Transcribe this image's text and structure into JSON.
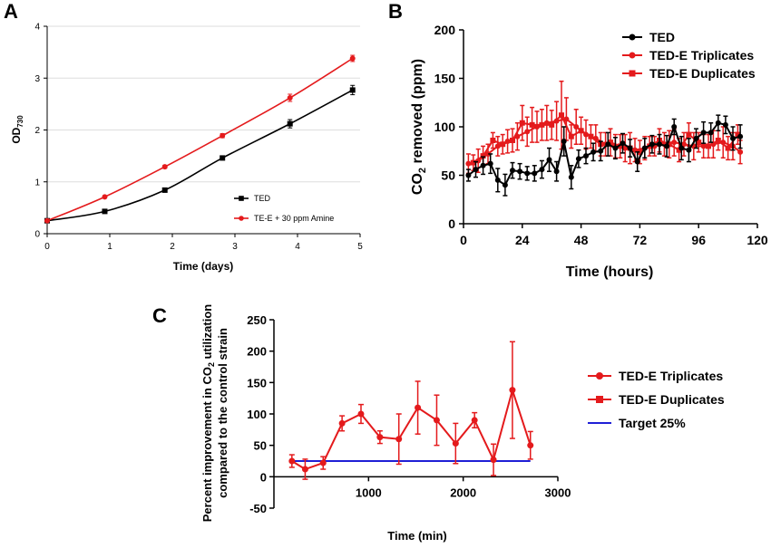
{
  "panels": {
    "a": "A",
    "b": "B",
    "c": "C"
  },
  "colors": {
    "black": "#000000",
    "red": "#e41a1c",
    "blue": "#1f1fd6",
    "grid": "#dddddd"
  },
  "chart_data": [
    {
      "id": "A",
      "type": "line",
      "xlabel": "Time (days)",
      "ylabel_main": "OD",
      "ylabel_sub": "730",
      "xlim": [
        0,
        5
      ],
      "ylim": [
        0,
        4
      ],
      "xticks": [
        0,
        1,
        2,
        3,
        4,
        5
      ],
      "yticks": [
        0,
        1,
        2,
        3,
        4
      ],
      "grid": "horizontal",
      "legend_position": "bottom-right",
      "series": [
        {
          "name": "TED",
          "color": "#000000",
          "marker": "square",
          "x": [
            0,
            0.92,
            1.88,
            2.8,
            3.88,
            4.88
          ],
          "y": [
            0.25,
            0.43,
            0.84,
            1.46,
            2.12,
            2.77
          ],
          "err": [
            0.01,
            0.02,
            0.03,
            0.03,
            0.08,
            0.09
          ]
        },
        {
          "name": "TE-E + 30 ppm Amine",
          "color": "#e41a1c",
          "marker": "circle",
          "x": [
            0,
            0.92,
            1.88,
            2.8,
            3.88,
            4.88
          ],
          "y": [
            0.25,
            0.71,
            1.29,
            1.89,
            2.62,
            3.38
          ],
          "err": [
            0.01,
            0.02,
            0.03,
            0.04,
            0.07,
            0.06
          ]
        }
      ]
    },
    {
      "id": "B",
      "type": "line",
      "xlabel": "Time (hours)",
      "ylabel_pre": "CO",
      "ylabel_sub": "2",
      "ylabel_post": " removed (ppm)",
      "xlim": [
        0,
        120
      ],
      "ylim": [
        0,
        200
      ],
      "xticks": [
        0,
        24,
        48,
        72,
        96,
        120
      ],
      "yticks": [
        0,
        50,
        100,
        150,
        200
      ],
      "grid": "off",
      "legend_position": "top-right",
      "series": [
        {
          "name": "TED",
          "color": "#000000",
          "marker": "circle",
          "x": [
            2,
            5,
            8,
            11,
            14,
            17,
            20,
            23,
            26,
            29,
            32,
            35,
            38,
            41,
            44,
            47,
            50,
            53,
            56,
            59,
            62,
            65,
            68,
            71,
            74,
            77,
            80,
            83,
            86,
            89,
            92,
            95,
            98,
            101,
            104,
            107,
            110,
            113
          ],
          "y": [
            50,
            56,
            60,
            62,
            45,
            40,
            55,
            54,
            52,
            52,
            56,
            66,
            54,
            85,
            48,
            67,
            70,
            74,
            75,
            82,
            78,
            83,
            78,
            64,
            78,
            82,
            82,
            80,
            100,
            78,
            76,
            88,
            94,
            94,
            104,
            102,
            88,
            90
          ],
          "err": [
            6,
            8,
            9,
            10,
            12,
            11,
            8,
            8,
            7,
            8,
            9,
            12,
            10,
            15,
            12,
            9,
            8,
            9,
            10,
            12,
            11,
            10,
            9,
            10,
            10,
            9,
            10,
            11,
            8,
            12,
            12,
            10,
            11,
            10,
            8,
            9,
            12,
            12
          ]
        },
        {
          "name": "TED-E Triplicates",
          "color": "#e41a1c",
          "marker": "circle",
          "x": [
            2,
            6,
            10,
            14,
            18,
            22,
            26,
            30,
            34,
            38,
            42,
            46,
            50,
            54,
            58,
            62,
            66,
            70,
            74,
            78,
            82,
            86,
            90,
            94,
            98,
            102,
            106,
            110,
            113
          ],
          "y": [
            62,
            65,
            72,
            80,
            85,
            90,
            95,
            100,
            104,
            106,
            108,
            100,
            92,
            88,
            82,
            80,
            78,
            76,
            78,
            80,
            82,
            84,
            82,
            80,
            80,
            82,
            84,
            80,
            74
          ],
          "err": [
            10,
            12,
            10,
            10,
            12,
            14,
            15,
            16,
            18,
            20,
            22,
            18,
            15,
            14,
            12,
            12,
            14,
            12,
            12,
            10,
            12,
            14,
            12,
            14,
            12,
            14,
            16,
            14,
            12
          ]
        },
        {
          "name": "TED-E Duplicates",
          "color": "#e41a1c",
          "marker": "square",
          "x": [
            4,
            8,
            12,
            16,
            20,
            24,
            28,
            32,
            36,
            40,
            44,
            48,
            52,
            56,
            60,
            64,
            68,
            72,
            76,
            80,
            84,
            88,
            92,
            96,
            100,
            104,
            108,
            112
          ],
          "y": [
            63,
            70,
            86,
            82,
            86,
            104,
            102,
            102,
            102,
            112,
            90,
            96,
            90,
            82,
            84,
            80,
            78,
            74,
            80,
            86,
            82,
            76,
            92,
            84,
            80,
            86,
            78,
            92
          ],
          "err": [
            8,
            10,
            8,
            10,
            12,
            18,
            18,
            16,
            15,
            35,
            12,
            14,
            12,
            12,
            14,
            12,
            16,
            12,
            10,
            12,
            14,
            12,
            12,
            10,
            12,
            10,
            12,
            10
          ]
        }
      ]
    },
    {
      "id": "C",
      "type": "line",
      "xlabel": "Time (min)",
      "ylabel_line1_pre": "Percent improvement in CO",
      "ylabel_line1_sub": "2",
      "ylabel_line1_post": " utilization",
      "ylabel_line2": "compared to the control strain",
      "xlim": [
        0,
        3000
      ],
      "ylim": [
        -50,
        250
      ],
      "xticks": [
        1000,
        2000,
        3000
      ],
      "yticks": [
        -50,
        0,
        50,
        100,
        150,
        200,
        250
      ],
      "grid": "off",
      "legend_position": "right",
      "series": [
        {
          "name": "TED-E Triplicates",
          "color": "#e41a1c",
          "marker": "circle",
          "x": [
            190,
            330,
            520,
            720,
            920,
            1120,
            1320,
            1520,
            1720,
            1920,
            2120,
            2320,
            2520,
            2710
          ],
          "y": [
            25,
            12,
            22,
            85,
            100,
            63,
            60,
            110,
            90,
            53,
            90,
            27,
            138,
            50
          ],
          "err": [
            10,
            16,
            10,
            12,
            15,
            10,
            40,
            42,
            40,
            32,
            12,
            25,
            77,
            22
          ]
        },
        {
          "name": "TED-E Duplicates",
          "color": "#e41a1c",
          "marker": "square",
          "x": [],
          "y": [],
          "err": []
        },
        {
          "name": "Target 25%",
          "color": "#1f1fd6",
          "marker": "none",
          "x": [
            190,
            2710
          ],
          "y": [
            25,
            25
          ],
          "err": []
        }
      ]
    }
  ]
}
